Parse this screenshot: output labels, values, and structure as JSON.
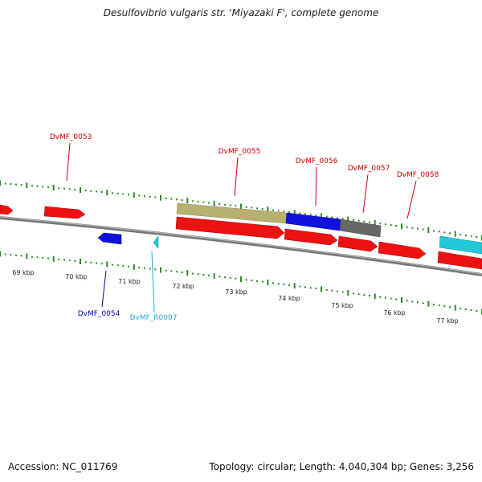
{
  "title": "Desulfovibrio vulgaris str. 'Miyazaki F', complete genome",
  "footer": {
    "accession": "Accession: NC_011769",
    "summary": "Topology: circular; Length: 4,040,304 bp; Genes: 3,256"
  },
  "colors": {
    "red_gene": "#ee1111",
    "blue_gene": "#1111dd",
    "cyan_gene": "#22c8d8",
    "olive_gene": "#b8b070",
    "gray_gene": "#666666",
    "ruler_tick": "#2a8a2a",
    "backbone": "#888888",
    "label_red": "#cc0000",
    "label_blue": "#0000aa",
    "label_cyan": "#22aadd"
  },
  "kbp_ticks": [
    "69 kbp",
    "70 kbp",
    "71 kbp",
    "72 kbp",
    "73 kbp",
    "74 kbp",
    "75 kbp",
    "76 kbp",
    "77 kbp"
  ],
  "gene_labels": [
    {
      "text": "DvMF_0053",
      "color": "#cc0000"
    },
    {
      "text": "DvMF_0054",
      "color": "#0000aa"
    },
    {
      "text": "DvMF_R0007",
      "color": "#22aadd"
    },
    {
      "text": "DvMF_0055",
      "color": "#cc0000"
    },
    {
      "text": "DvMF_0056",
      "color": "#cc0000"
    },
    {
      "text": "DvMF_0057",
      "color": "#cc0000"
    },
    {
      "text": "DvMF_0058",
      "color": "#cc0000"
    }
  ]
}
